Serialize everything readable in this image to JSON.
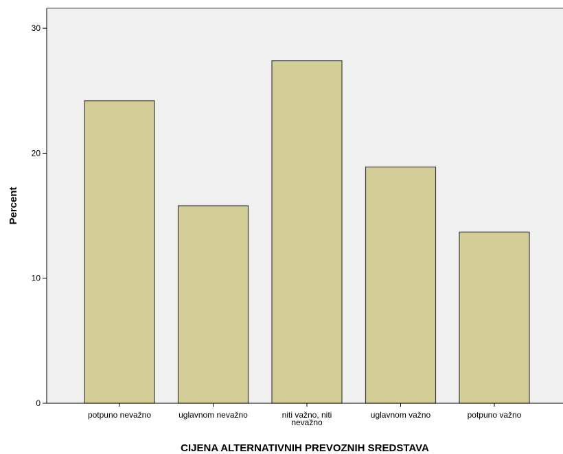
{
  "colors": {
    "plot_background": "#f0f0f0",
    "bar_fill": "#d3ce97",
    "bar_stroke": "#3c3c3c",
    "axis": "#000000"
  },
  "chart_data": {
    "type": "bar",
    "title": "",
    "xlabel": "CIJENA ALTERNATIVNIH PREVOZNIH SREDSTAVA",
    "ylabel": "Percent",
    "ylim": [
      0,
      31.6
    ],
    "yticks": [
      0,
      10,
      20,
      30
    ],
    "grid": false,
    "legend": "none",
    "categories": [
      [
        "potpuno nevažno"
      ],
      [
        "uglavnom nevažno"
      ],
      [
        "niti važno, niti",
        "nevažno"
      ],
      [
        "uglavnom važno"
      ],
      [
        "potpuno važno"
      ]
    ],
    "values": [
      24.2,
      15.8,
      27.4,
      18.9,
      13.7
    ]
  }
}
